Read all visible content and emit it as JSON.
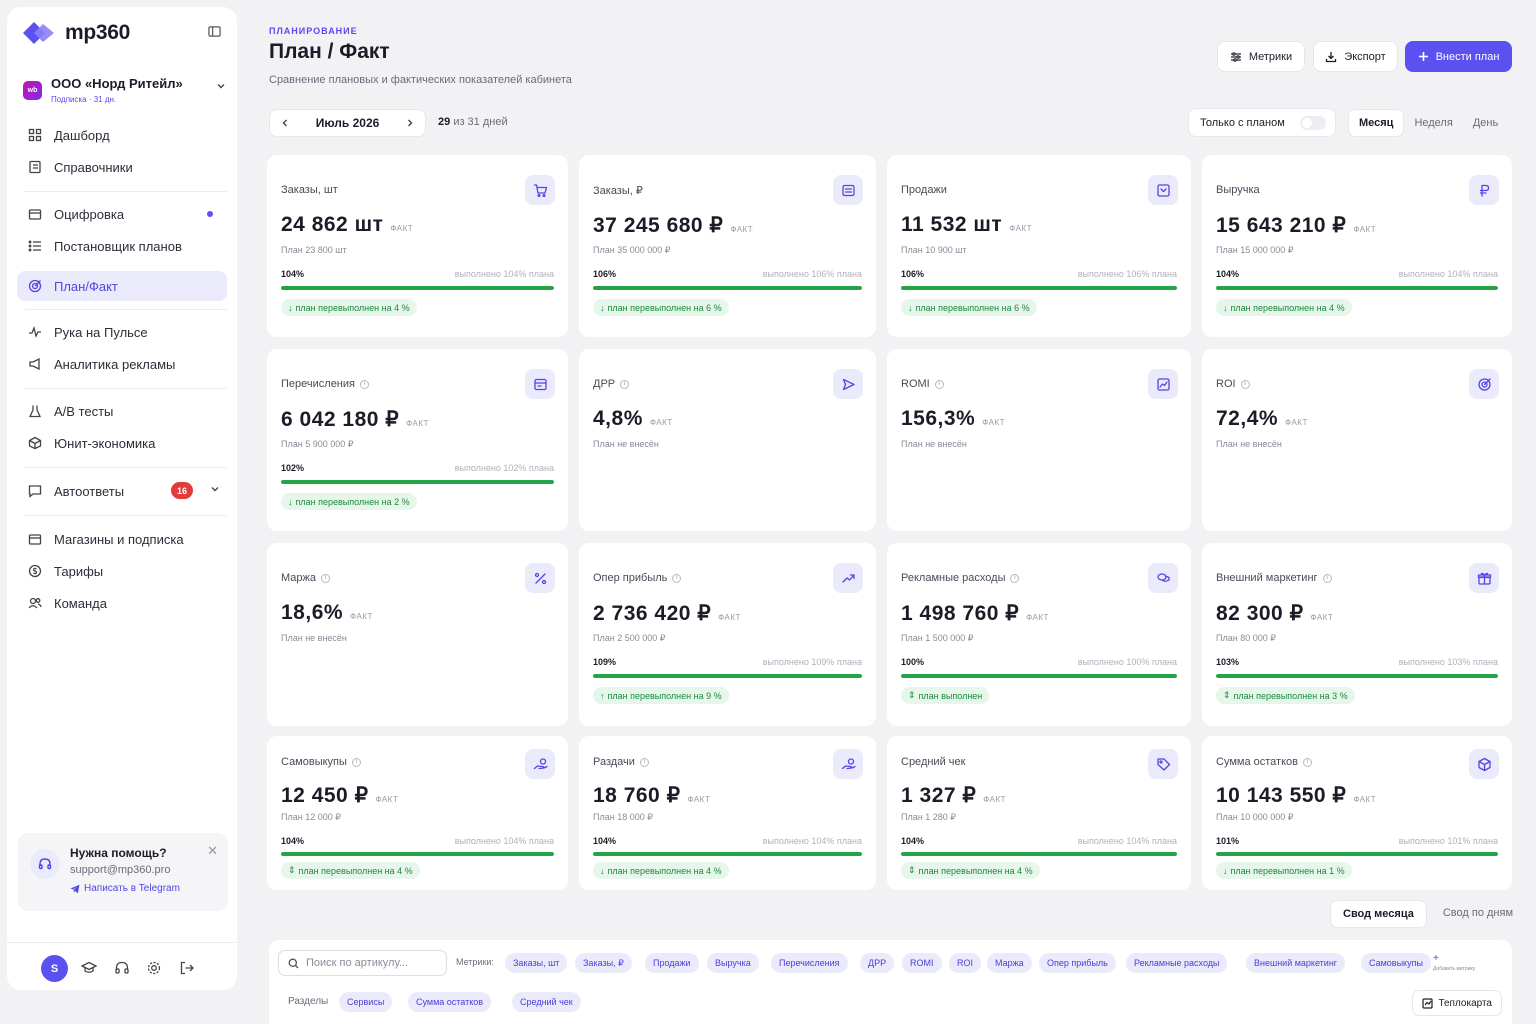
{
  "brand": {
    "name": "mp360",
    "accent": "#5b50f0",
    "success": "#22a447"
  },
  "account": {
    "badge": "wb",
    "name": "ООО «Норд Ритейл»",
    "subscription": "Подписка · 31 дн."
  },
  "nav": {
    "dashboard": "Дашборд",
    "references": "Справочники",
    "digitization": "Оцифровка",
    "plan_builder": "Постановщик планов",
    "plan_fact": "План/Факт",
    "pulse": "Рука на Пульсе",
    "ads": "Аналитика рекламы",
    "ab": "A/B тесты",
    "unit": "Юнит-экономика",
    "autoreplies": "Автоответы",
    "autoreplies_count": "16",
    "shops": "Магазины и подписка",
    "tariffs": "Тарифы",
    "team": "Команда"
  },
  "help": {
    "title": "Нужна помощь?",
    "email": "support@mp360.pro",
    "link": "Написать в Telegram"
  },
  "user": {
    "initial": "S"
  },
  "header": {
    "eyebrow": "ПЛАНИРОВАНИЕ",
    "title": "План / Факт",
    "subtitle": "Сравнение плановых и фактических показателей кабинета",
    "metrics_btn": "Метрики",
    "export_btn": "Экспорт",
    "add_plan_btn": "Внести план"
  },
  "period": {
    "label": "Июль 2026",
    "days_current": "29",
    "days_rest": "из 31 дней"
  },
  "toolbar": {
    "only_plan": "Только с планом",
    "only_plan_on": false,
    "granularity": [
      "Месяц",
      "Неделя",
      "День"
    ],
    "granularity_selected": "Месяц"
  },
  "fact_label": "ФАКТ",
  "cards": [
    {
      "title": "Заказы, шт",
      "info": false,
      "icon": "cart-icon",
      "value": "24 862 шт",
      "plan": "План 23 800 шт",
      "pct": "104%",
      "done": "выполнено 104% плана",
      "progress": 100,
      "chip": "план перевыполнен на 4 %",
      "chip_icon": "↓"
    },
    {
      "title": "Заказы, ₽",
      "info": false,
      "icon": "invoice-icon",
      "value": "37 245 680 ₽",
      "plan": "План 35 000 000 ₽",
      "pct": "106%",
      "done": "выполнено 106% плана",
      "progress": 100,
      "chip": "план перевыполнен на 6 %",
      "chip_icon": "↓"
    },
    {
      "title": "Продажи",
      "info": false,
      "icon": "inbox-icon",
      "value": "11 532 шт",
      "plan": "План 10 900 шт",
      "pct": "106%",
      "done": "выполнено 106% плана",
      "progress": 100,
      "chip": "план перевыполнен на 6 %",
      "chip_icon": "↓"
    },
    {
      "title": "Выручка",
      "info": false,
      "icon": "ruble-icon",
      "value": "15 643 210 ₽",
      "plan": "План 15 000 000 ₽",
      "pct": "104%",
      "done": "выполнено 104% плана",
      "progress": 100,
      "chip": "план перевыполнен на 4 %",
      "chip_icon": "↓"
    },
    {
      "title": "Перечисления",
      "info": true,
      "icon": "wallet-icon",
      "value": "6 042 180 ₽",
      "plan": "План 5 900 000 ₽",
      "pct": "102%",
      "done": "выполнено 102% плана",
      "progress": 100,
      "chip": "план перевыполнен на 2 %",
      "chip_icon": "↓"
    },
    {
      "title": "ДРР",
      "info": true,
      "icon": "send-icon",
      "value": "4,8%",
      "plan": "План не внесён"
    },
    {
      "title": "ROMI",
      "info": true,
      "icon": "line-chart-icon",
      "value": "156,3%",
      "plan": "План не внесён"
    },
    {
      "title": "ROI",
      "info": true,
      "icon": "target-icon",
      "value": "72,4%",
      "plan": "План не внесён"
    },
    {
      "title": "Маржа",
      "info": true,
      "icon": "percent-icon",
      "value": "18,6%",
      "plan": "План не внесён"
    },
    {
      "title": "Опер прибыль",
      "info": true,
      "icon": "trend-up-icon",
      "value": "2 736 420 ₽",
      "plan": "План 2 500 000 ₽",
      "pct": "109%",
      "done": "выполнено 109% плана",
      "progress": 100,
      "chip": "план перевыполнен на 9 %",
      "chip_icon": "↑"
    },
    {
      "title": "Рекламные расходы",
      "info": true,
      "icon": "coins-icon",
      "value": "1 498 760 ₽",
      "plan": "План 1 500 000 ₽",
      "pct": "100%",
      "done": "выполнено 100% плана",
      "progress": 100,
      "chip": "план выполнен",
      "chip_icon": "⇕"
    },
    {
      "title": "Внешний маркетинг",
      "info": true,
      "icon": "gift-icon",
      "value": "82 300 ₽",
      "plan": "План 80 000 ₽",
      "pct": "103%",
      "done": "выполнено 103% плана",
      "progress": 100,
      "chip": "план перевыполнен на 3 %",
      "chip_icon": "⇕"
    },
    {
      "title": "Самовыкупы",
      "info": true,
      "icon": "hand-coin-icon",
      "value": "12 450 ₽",
      "plan": "План 12 000 ₽",
      "pct": "104%",
      "done": "выполнено 104% плана",
      "progress": 100,
      "chip": "план перевыполнен на 4 %",
      "chip_icon": "⇕"
    },
    {
      "title": "Раздачи",
      "info": true,
      "icon": "hand-coin-icon",
      "value": "18 760 ₽",
      "plan": "План 18 000 ₽",
      "pct": "104%",
      "done": "выполнено 104% плана",
      "progress": 100,
      "chip": "план перевыполнен на 4 %",
      "chip_icon": "↓"
    },
    {
      "title": "Средний чек",
      "info": false,
      "icon": "tag-icon",
      "value": "1 327 ₽",
      "plan": "План 1 280 ₽",
      "pct": "104%",
      "done": "выполнено 104% плана",
      "progress": 100,
      "chip": "план перевыполнен на 4 %",
      "chip_icon": "⇕"
    },
    {
      "title": "Сумма остатков",
      "info": true,
      "icon": "box-icon",
      "value": "10 143 550 ₽",
      "plan": "План 10 000 000 ₽",
      "pct": "101%",
      "done": "выполнено 101% плана",
      "progress": 100,
      "chip": "план перевыполнен на 1 %",
      "chip_icon": "↓"
    }
  ],
  "view_tabs": [
    "Свод месяца",
    "Свод по дням"
  ],
  "view_selected": "Свод месяца",
  "filters": {
    "search_placeholder": "Поиск по артикулу...",
    "metrics_label": "Метрики:",
    "metrics": [
      "Заказы, шт",
      "Заказы, ₽",
      "Продажи",
      "Выручка",
      "Перечисления",
      "ДРР",
      "ROMI",
      "ROI",
      "Маржа",
      "Опер прибыль",
      "Рекламные расходы",
      "Внешний маркетинг",
      "Самовыкупы"
    ],
    "add_metric": "+",
    "add_metric_hint": "Добавить метрику",
    "sections_label": "Разделы",
    "sections": [
      "Сервисы",
      "Сумма остатков",
      "Средний чек"
    ],
    "heatmap": "Теплокарта"
  }
}
